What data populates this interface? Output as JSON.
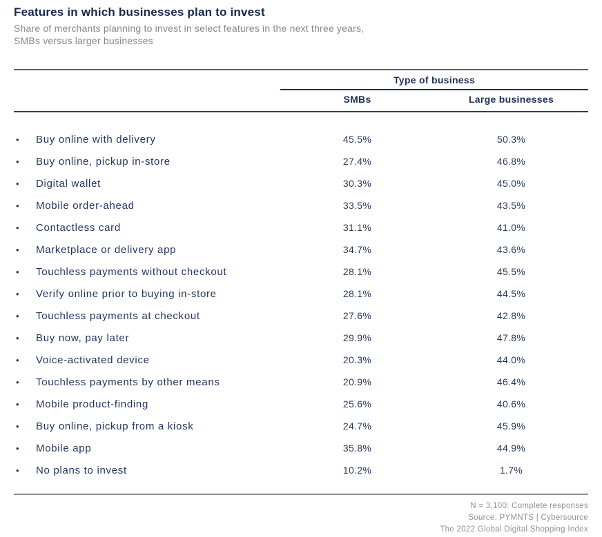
{
  "colors": {
    "accent_navy": "#1d3157",
    "row_text_navy": "#23355e",
    "subtitle_gray": "#85878c",
    "footer_gray": "#8f9298"
  },
  "header": {
    "title": "Features in which businesses plan to invest",
    "subtitle_lines": [
      "Share of merchants planning to invest in select features in the next three years,",
      "SMBs versus larger businesses"
    ]
  },
  "table": {
    "group_header": "Type of business",
    "columns": [
      "SMBs",
      "Large businesses"
    ],
    "bullet_glyph": "•",
    "rows": [
      {
        "label": "Buy online with delivery",
        "smbs": "45.5%",
        "large": "50.3%"
      },
      {
        "label": "Buy online, pickup in-store",
        "smbs": "27.4%",
        "large": "46.8%"
      },
      {
        "label": "Digital wallet",
        "smbs": "30.3%",
        "large": "45.0%"
      },
      {
        "label": "Mobile order-ahead",
        "smbs": "33.5%",
        "large": "43.5%"
      },
      {
        "label": "Contactless card",
        "smbs": "31.1%",
        "large": "41.0%"
      },
      {
        "label": "Marketplace or delivery app",
        "smbs": "34.7%",
        "large": "43.6%"
      },
      {
        "label": "Touchless payments without checkout",
        "smbs": "28.1%",
        "large": "45.5%"
      },
      {
        "label": "Verify online prior to buying in-store",
        "smbs": "28.1%",
        "large": "44.5%"
      },
      {
        "label": "Touchless payments at checkout",
        "smbs": "27.6%",
        "large": "42.8%"
      },
      {
        "label": "Buy now, pay later",
        "smbs": "29.9%",
        "large": "47.8%"
      },
      {
        "label": "Voice-activated device",
        "smbs": "20.3%",
        "large": "44.0%"
      },
      {
        "label": "Touchless payments by other means",
        "smbs": "20.9%",
        "large": "46.4%"
      },
      {
        "label": "Mobile product-finding",
        "smbs": "25.6%",
        "large": "40.6%"
      },
      {
        "label": "Buy online, pickup from a kiosk",
        "smbs": "24.7%",
        "large": "45.9%"
      },
      {
        "label": "Mobile app",
        "smbs": "35.8%",
        "large": "44.9%"
      },
      {
        "label": "No plans to invest",
        "smbs": "10.2%",
        "large": "1.7%"
      }
    ]
  },
  "footer": {
    "lines": [
      "N = 3,100: Complete responses",
      "Source:  PYMNTS  |  Cybersource",
      "The 2022 Global Digital Shopping Index"
    ]
  },
  "chart_data": {
    "type": "table",
    "title": "Features in which businesses plan to invest",
    "subtitle": "Share of merchants planning to invest in select features in the next three years, SMBs versus larger businesses",
    "column_group_header": "Type of business",
    "columns": [
      "SMBs",
      "Large businesses"
    ],
    "categories": [
      "Buy online with delivery",
      "Buy online, pickup in-store",
      "Digital wallet",
      "Mobile order-ahead",
      "Contactless card",
      "Marketplace or delivery app",
      "Touchless payments without checkout",
      "Verify online prior to buying in-store",
      "Touchless payments at checkout",
      "Buy now, pay later",
      "Voice-activated device",
      "Touchless payments by other means",
      "Mobile product-finding",
      "Buy online, pickup from a kiosk",
      "Mobile app",
      "No plans to invest"
    ],
    "series": [
      {
        "name": "SMBs",
        "values": [
          45.5,
          27.4,
          30.3,
          33.5,
          31.1,
          34.7,
          28.1,
          28.1,
          27.6,
          29.9,
          20.3,
          20.9,
          25.6,
          24.7,
          35.8,
          10.2
        ]
      },
      {
        "name": "Large businesses",
        "values": [
          50.3,
          46.8,
          45.0,
          43.5,
          41.0,
          43.6,
          45.5,
          44.5,
          42.8,
          47.8,
          44.0,
          46.4,
          40.6,
          45.9,
          44.9,
          1.7
        ]
      }
    ],
    "unit": "%",
    "notes": [
      "N = 3,100: Complete responses",
      "Source: PYMNTS | Cybersource",
      "The 2022 Global Digital Shopping Index"
    ]
  }
}
